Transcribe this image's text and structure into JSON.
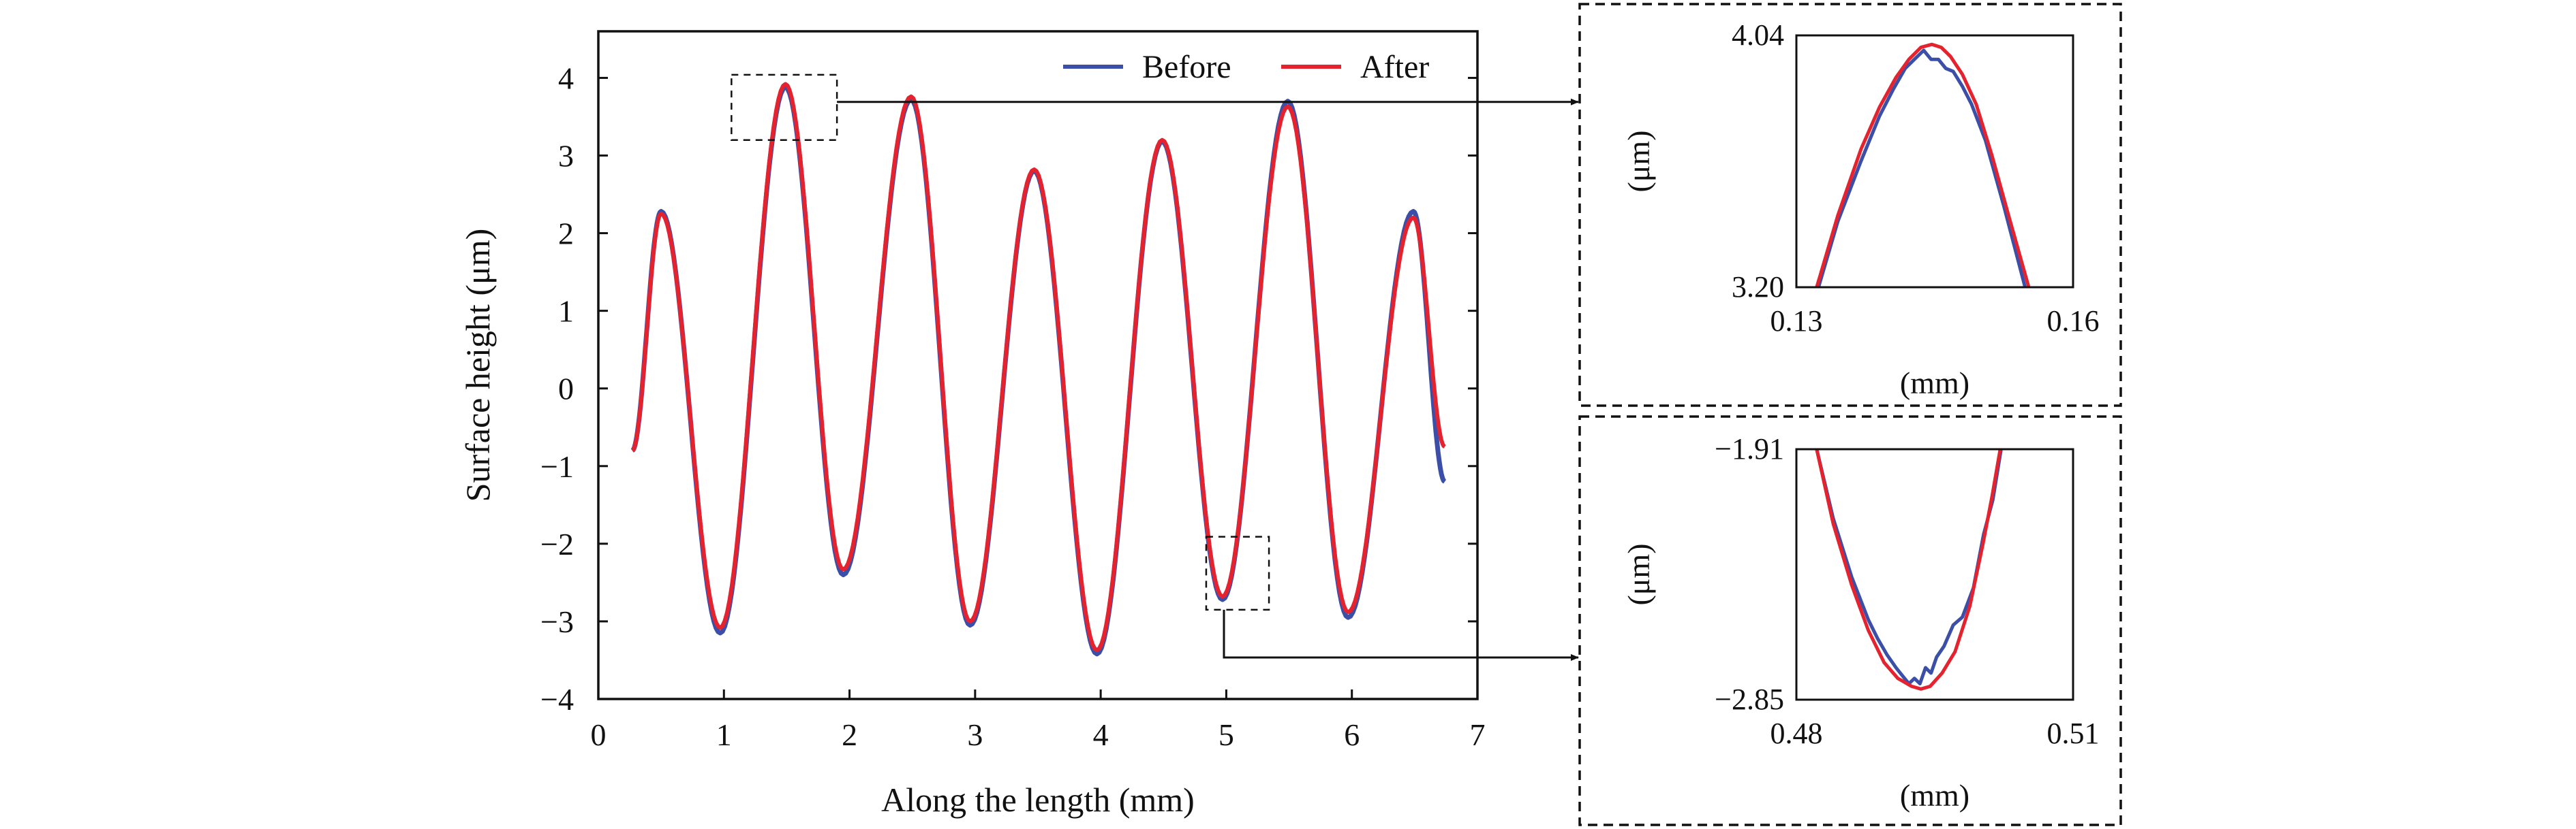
{
  "colors": {
    "before": "#3b4fa8",
    "after": "#e5232f",
    "axis": "#111111"
  },
  "chart_data": [
    {
      "id": "main",
      "type": "line",
      "xlabel": "Along the length (mm)",
      "ylabel": "Surface height (μm)",
      "xlim": [
        0,
        7
      ],
      "ylim": [
        -4,
        4.6
      ],
      "xticks": [
        0,
        1,
        2,
        3,
        4,
        5,
        6,
        7
      ],
      "yticks": [
        -4,
        -3,
        -2,
        -1,
        0,
        1,
        2,
        3,
        4
      ],
      "ytick_labels": [
        "−4",
        "−3",
        "−2",
        "−1",
        "0",
        "1",
        "2",
        "3",
        "4"
      ],
      "legend": {
        "placement": "top-right",
        "entries": [
          "Before",
          "After"
        ]
      },
      "extrema": {
        "x": [
          0.27,
          0.5,
          0.97,
          1.49,
          1.95,
          2.49,
          2.96,
          3.47,
          3.97,
          4.49,
          4.97,
          5.49,
          5.97,
          6.49,
          6.74
        ],
        "before": [
          -0.8,
          2.28,
          -3.15,
          3.88,
          -2.4,
          3.72,
          -3.05,
          2.8,
          -3.42,
          3.18,
          -2.72,
          3.7,
          -2.95,
          2.28,
          -1.2
        ],
        "after": [
          -0.8,
          2.25,
          -3.08,
          3.92,
          -2.33,
          3.76,
          -3.0,
          2.82,
          -3.37,
          3.2,
          -2.68,
          3.63,
          -2.88,
          2.2,
          -0.75
        ]
      },
      "zoom_boxes": [
        {
          "x": [
            1.06,
            1.9
          ],
          "y": [
            3.2,
            4.04
          ],
          "links_to": "top-inset"
        },
        {
          "x": [
            4.84,
            5.34
          ],
          "y": [
            -2.85,
            -1.91
          ],
          "links_to": "bottom-inset"
        }
      ]
    },
    {
      "id": "top-inset",
      "type": "line",
      "xlabel": "(mm)",
      "ylabel": "(μm)",
      "xlim": [
        0.13,
        0.16
      ],
      "ylim": [
        3.2,
        4.04
      ],
      "xtick_labels": [
        "0.13",
        "0.16"
      ],
      "ytick_labels": [
        "3.20",
        "4.04"
      ],
      "series": [
        {
          "name": "Before",
          "x": [
            0.1324,
            0.1345,
            0.137,
            0.139,
            0.1405,
            0.1418,
            0.1428,
            0.1438,
            0.1446,
            0.1454,
            0.1462,
            0.147,
            0.148,
            0.149,
            0.1505,
            0.1525,
            0.1548
          ],
          "y": [
            3.2,
            3.42,
            3.62,
            3.77,
            3.86,
            3.93,
            3.96,
            3.99,
            3.96,
            3.96,
            3.93,
            3.92,
            3.87,
            3.81,
            3.69,
            3.47,
            3.2
          ]
        },
        {
          "name": "After",
          "x": [
            0.1322,
            0.1345,
            0.137,
            0.139,
            0.1408,
            0.1422,
            0.1435,
            0.1447,
            0.1457,
            0.1467,
            0.148,
            0.1495,
            0.1512,
            0.153,
            0.1552
          ],
          "y": [
            3.2,
            3.44,
            3.66,
            3.8,
            3.9,
            3.96,
            4.0,
            4.01,
            4.0,
            3.97,
            3.91,
            3.81,
            3.64,
            3.44,
            3.2
          ]
        }
      ]
    },
    {
      "id": "bottom-inset",
      "type": "line",
      "xlabel": "(mm)",
      "ylabel": "(μm)",
      "xlim": [
        0.48,
        0.51
      ],
      "ylim": [
        -2.85,
        -1.91
      ],
      "xtick_labels": [
        "0.48",
        "0.51"
      ],
      "ytick_labels": [
        "−1.91",
        "−2.85"
      ],
      "series": [
        {
          "name": "Before",
          "x": [
            0.4822,
            0.484,
            0.486,
            0.4878,
            0.4888,
            0.4898,
            0.4908,
            0.4915,
            0.4922,
            0.4928,
            0.4934,
            0.494,
            0.4946,
            0.4952,
            0.496,
            0.497,
            0.498,
            0.4992,
            0.5003,
            0.5013,
            0.5022
          ],
          "y": [
            -1.91,
            -2.17,
            -2.39,
            -2.55,
            -2.62,
            -2.68,
            -2.73,
            -2.76,
            -2.79,
            -2.77,
            -2.79,
            -2.73,
            -2.75,
            -2.69,
            -2.65,
            -2.57,
            -2.54,
            -2.43,
            -2.23,
            -2.1,
            -1.91
          ]
        },
        {
          "name": "After",
          "x": [
            0.4822,
            0.484,
            0.486,
            0.4878,
            0.4895,
            0.491,
            0.4925,
            0.4935,
            0.4945,
            0.4958,
            0.4972,
            0.4988,
            0.5002,
            0.5012,
            0.5021
          ],
          "y": [
            -1.91,
            -2.19,
            -2.42,
            -2.59,
            -2.71,
            -2.77,
            -2.8,
            -2.81,
            -2.8,
            -2.75,
            -2.67,
            -2.5,
            -2.27,
            -2.09,
            -1.91
          ]
        }
      ]
    }
  ]
}
